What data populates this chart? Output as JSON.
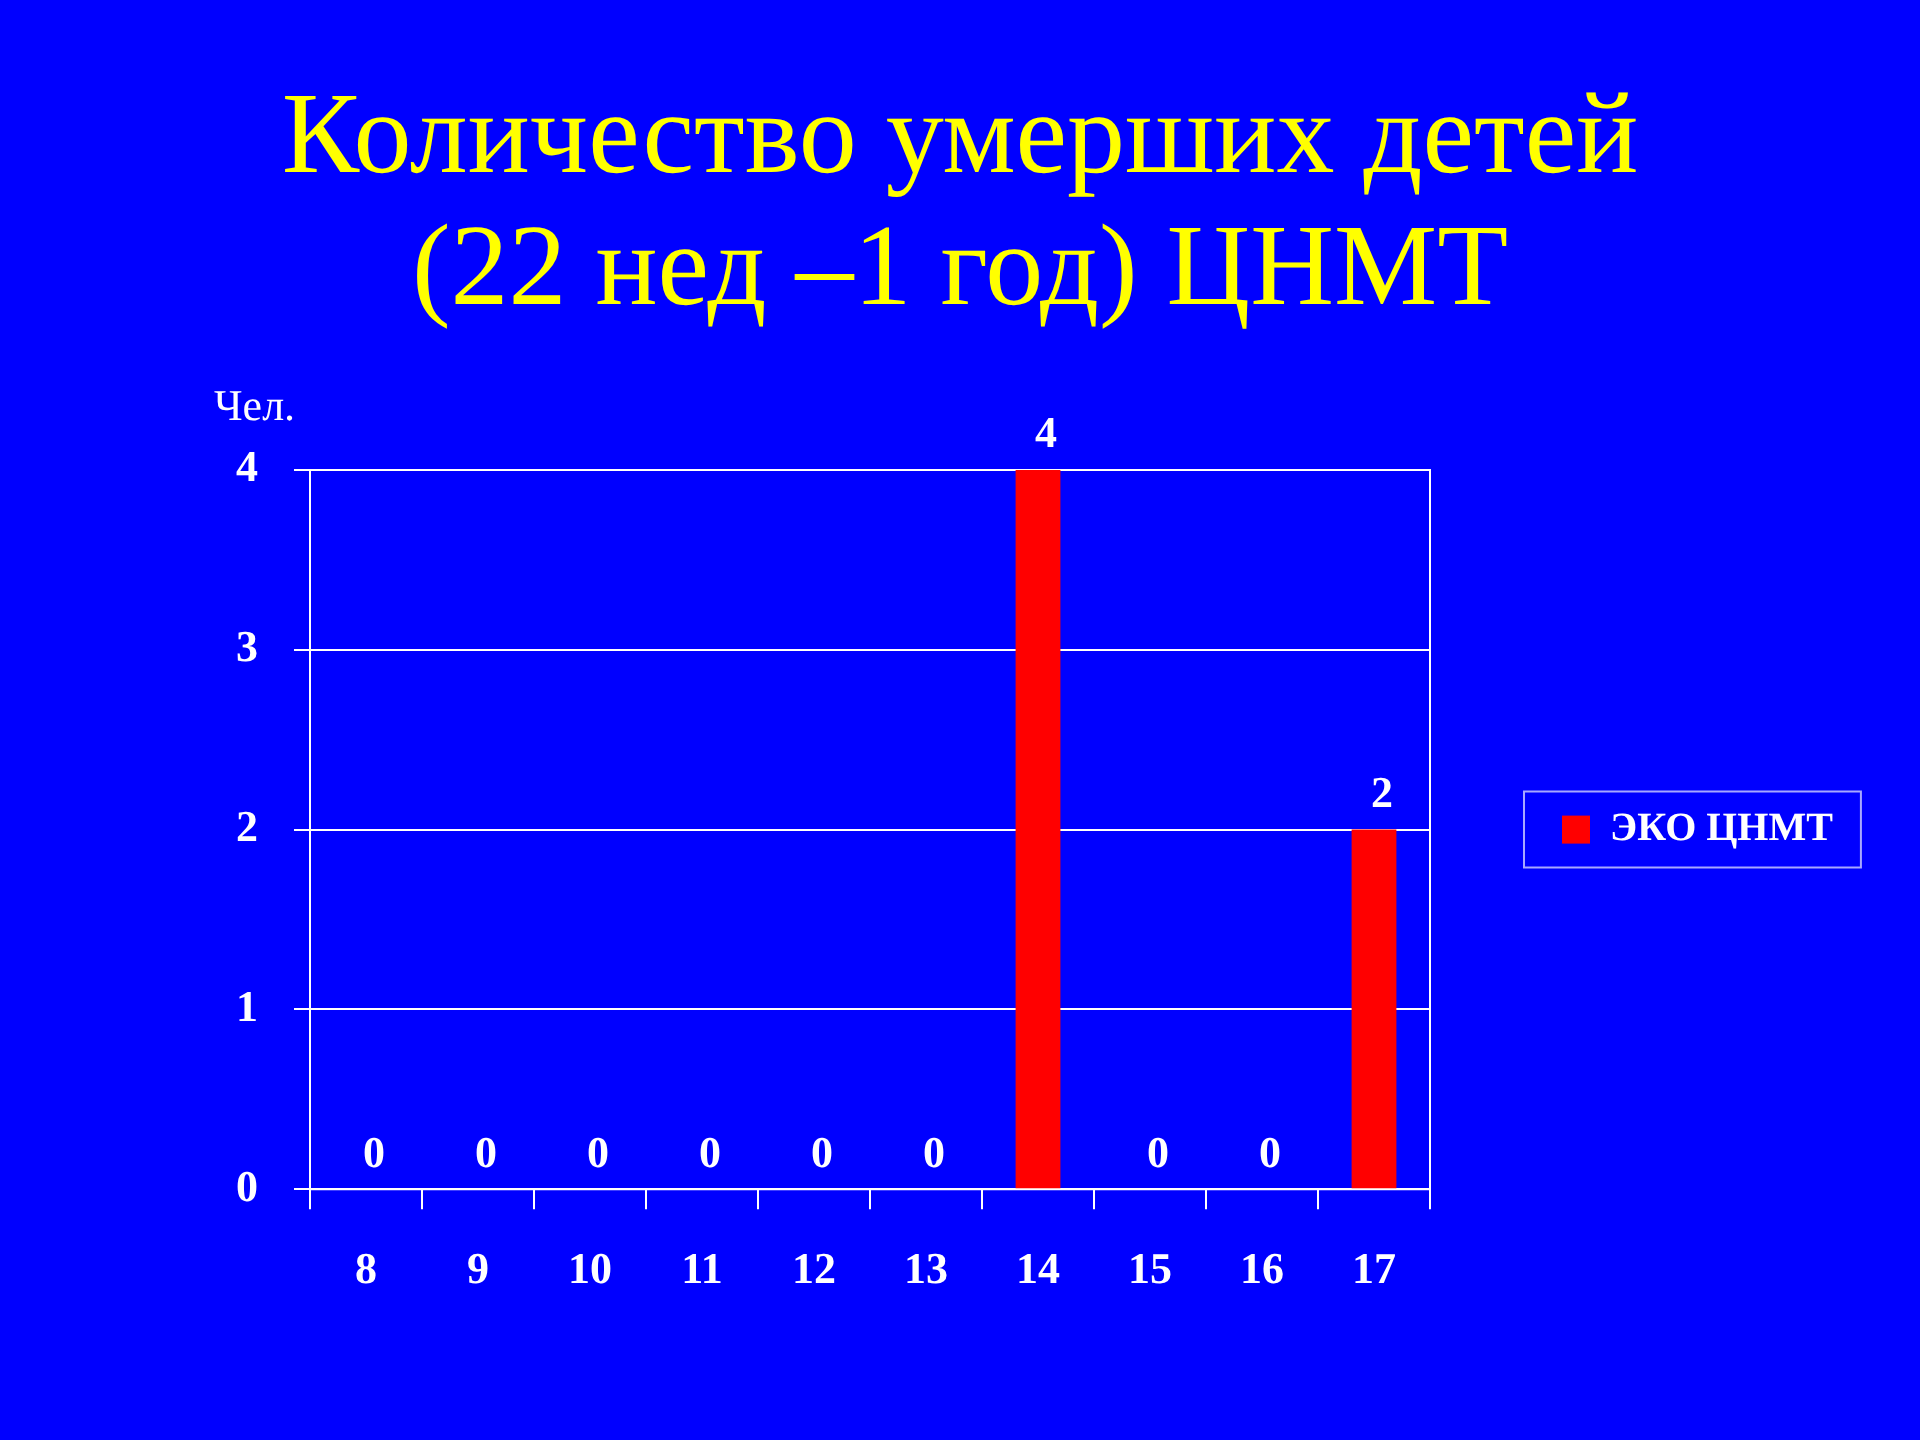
{
  "chart_data": {
    "type": "bar",
    "title": "Количество умерших детей (22 нед –1 год) ЦНМТ",
    "ylabel": "Чел.",
    "categories": [
      "8",
      "9",
      "10",
      "11",
      "12",
      "13",
      "14",
      "15",
      "16",
      "17"
    ],
    "series": [
      {
        "name": "ЭКО ЦНМТ",
        "color": "#ff0000",
        "values": [
          0,
          0,
          0,
          0,
          0,
          0,
          4,
          0,
          0,
          2
        ]
      }
    ],
    "ylim": [
      0,
      4
    ],
    "yticks": [
      0,
      1,
      2,
      3,
      4
    ],
    "grid": "y",
    "legend": "right",
    "data_labels": true
  }
}
